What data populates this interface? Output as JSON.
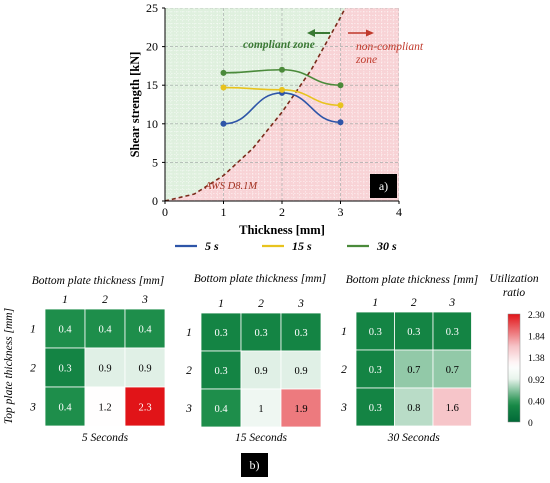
{
  "chart_data": [
    {
      "panel_label": "a)",
      "type": "line",
      "title": "",
      "xlabel": "Thickness  [mm]",
      "ylabel": "Shear strength [kN]",
      "xlim": [
        0,
        4
      ],
      "ylim": [
        0,
        25
      ],
      "x_ticks": [
        0,
        1,
        2,
        3,
        4
      ],
      "y_ticks": [
        0,
        5,
        10,
        15,
        20,
        25
      ],
      "grid": true,
      "legend": "bottom",
      "zones": {
        "compliant_label": "compliant zone",
        "non_compliant_label": "non-compliant zone",
        "compliant_color": "#dff0de",
        "non_compliant_color": "#f8d3d6",
        "boundary_label": "AWS D8.1M",
        "boundary_color": "#7a2a1a",
        "boundary": [
          [
            0,
            0
          ],
          [
            0.5,
            0.9
          ],
          [
            1,
            3.3
          ],
          [
            1.5,
            6.8
          ],
          [
            2,
            11.5
          ],
          [
            2.5,
            17.0
          ],
          [
            3,
            23.8
          ],
          [
            3.08,
            25
          ]
        ]
      },
      "series": [
        {
          "name": "5 s",
          "color": "#2e55a8",
          "x": [
            1,
            2,
            3
          ],
          "y": [
            10.0,
            14.0,
            10.2
          ]
        },
        {
          "name": "15 s",
          "color": "#e8c31e",
          "x": [
            1,
            2,
            3
          ],
          "y": [
            14.7,
            14.4,
            12.4
          ]
        },
        {
          "name": "30 s",
          "color": "#4a8a3a",
          "x": [
            1,
            2,
            3
          ],
          "y": [
            16.6,
            17.0,
            15.0
          ]
        }
      ]
    },
    {
      "panel_label": "b)",
      "type": "heatmap",
      "row_axis_label": "Top plate thickness [mm]",
      "col_axis_label": "Bottom plate thickness [mm]",
      "rows": [
        "1",
        "2",
        "3"
      ],
      "cols": [
        "1",
        "2",
        "3"
      ],
      "colorbar": {
        "title": "Utilization ratio",
        "ticks": [
          "2.30",
          "1.84",
          "1.38",
          "0.92",
          "0.40",
          "0"
        ],
        "min": 0,
        "max": 2.3
      },
      "panels": [
        {
          "title": "5 Seconds",
          "cells": [
            [
              "0.4",
              "0.4",
              "0.4"
            ],
            [
              "0.3",
              "0.9",
              "0.9"
            ],
            [
              "0.4",
              "1.2",
              "2.3"
            ]
          ]
        },
        {
          "title": "15 Seconds",
          "cells": [
            [
              "0.3",
              "0.3",
              "0.3"
            ],
            [
              "0.3",
              "0.9",
              "0.9"
            ],
            [
              "0.4",
              "1",
              "1.9"
            ]
          ]
        },
        {
          "title": "30 Seconds",
          "cells": [
            [
              "0.3",
              "0.3",
              "0.3"
            ],
            [
              "0.3",
              "0.7",
              "0.7"
            ],
            [
              "0.3",
              "0.8",
              "1.6"
            ]
          ]
        }
      ]
    }
  ]
}
